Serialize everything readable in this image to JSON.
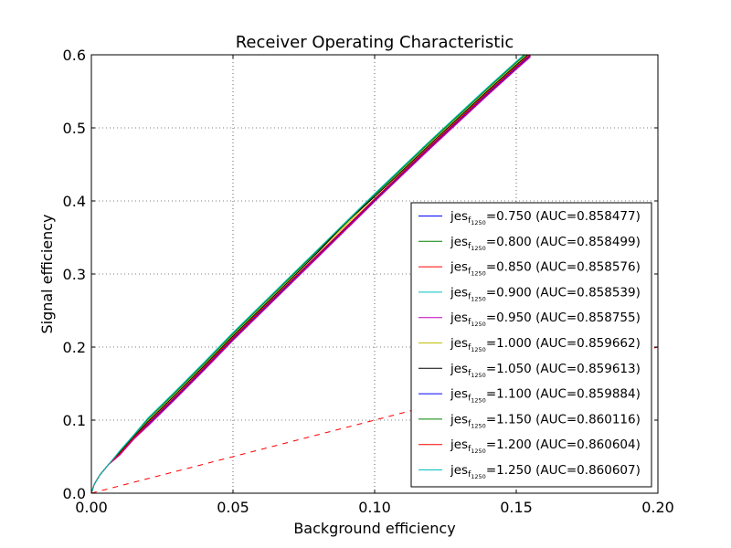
{
  "chart_data": {
    "type": "line",
    "title": "Receiver Operating Characteristic",
    "xlabel": "Background efficiency",
    "ylabel": "Signal efficiency",
    "xlim": [
      0,
      0.2
    ],
    "ylim": [
      0,
      0.6
    ],
    "xticks": [
      0,
      0.05,
      0.1,
      0.15,
      0.2
    ],
    "xtick_labels": [
      "0.00",
      "0.05",
      "0.10",
      "0.15",
      "0.20"
    ],
    "yticks": [
      0,
      0.1,
      0.2,
      0.3,
      0.4,
      0.5,
      0.6
    ],
    "ytick_labels": [
      "0.0",
      "0.1",
      "0.2",
      "0.3",
      "0.4",
      "0.5",
      "0.6"
    ],
    "grid": true,
    "legend_position": "lower-right",
    "reference_line": {
      "x": [
        0,
        0.2
      ],
      "y": [
        0,
        0.2
      ],
      "color": "#ff0000",
      "style": "dashed"
    },
    "x": [
      0,
      0.001,
      0.003,
      0.006,
      0.01,
      0.015,
      0.02,
      0.03,
      0.04,
      0.05,
      0.06,
      0.07,
      0.08,
      0.09,
      0.1,
      0.11,
      0.12,
      0.13,
      0.14,
      0.15,
      0.155
    ],
    "series": [
      {
        "label": {
          "base": "jes",
          "sub": "f",
          "subsub": "1250",
          "suffix": "=0.750 (AUC=0.858477)"
        },
        "color": "#0000ff",
        "values": [
          0,
          0.012,
          0.025,
          0.039,
          0.053,
          0.074,
          0.093,
          0.131,
          0.17,
          0.21,
          0.248,
          0.286,
          0.324,
          0.362,
          0.4,
          0.437,
          0.474,
          0.51,
          0.546,
          0.581,
          0.598
        ]
      },
      {
        "label": {
          "base": "jes",
          "sub": "f",
          "subsub": "1250",
          "suffix": "=0.800 (AUC=0.858499)"
        },
        "color": "#008000",
        "values": [
          0,
          0.012,
          0.025,
          0.039,
          0.056,
          0.079,
          0.101,
          0.139,
          0.178,
          0.218,
          0.256,
          0.294,
          0.332,
          0.37,
          0.408,
          0.445,
          0.482,
          0.518,
          0.554,
          0.589,
          0.606
        ]
      },
      {
        "label": {
          "base": "jes",
          "sub": "f",
          "subsub": "1250",
          "suffix": "=0.850 (AUC=0.858576)"
        },
        "color": "#ff0000",
        "values": [
          0,
          0.012,
          0.025,
          0.039,
          0.053,
          0.075,
          0.094,
          0.132,
          0.171,
          0.211,
          0.249,
          0.287,
          0.325,
          0.363,
          0.401,
          0.438,
          0.475,
          0.511,
          0.547,
          0.582,
          0.599
        ]
      },
      {
        "label": {
          "base": "jes",
          "sub": "f",
          "subsub": "1250",
          "suffix": "=0.900 (AUC=0.858539)"
        },
        "color": "#00bfbf",
        "values": [
          0,
          0.012,
          0.025,
          0.039,
          0.057,
          0.079,
          0.102,
          0.14,
          0.179,
          0.219,
          0.257,
          0.295,
          0.333,
          0.371,
          0.409,
          0.446,
          0.483,
          0.519,
          0.555,
          0.59,
          0.607
        ]
      },
      {
        "label": {
          "base": "jes",
          "sub": "f",
          "subsub": "1250",
          "suffix": "=0.950 (AUC=0.858755)"
        },
        "color": "#bf00bf",
        "values": [
          0,
          0.012,
          0.025,
          0.039,
          0.052,
          0.074,
          0.092,
          0.13,
          0.169,
          0.209,
          0.247,
          0.285,
          0.323,
          0.361,
          0.399,
          0.436,
          0.473,
          0.509,
          0.545,
          0.58,
          0.597
        ]
      },
      {
        "label": {
          "base": "jes",
          "sub": "f",
          "subsub": "1250",
          "suffix": "=1.000 (AUC=0.859662)"
        },
        "color": "#bfbf00",
        "values": [
          0,
          0.012,
          0.025,
          0.039,
          0.055,
          0.077,
          0.099,
          0.137,
          0.176,
          0.216,
          0.254,
          0.292,
          0.33,
          0.368,
          0.406,
          0.443,
          0.48,
          0.516,
          0.552,
          0.587,
          0.604
        ]
      },
      {
        "label": {
          "base": "jes",
          "sub": "f",
          "subsub": "1250",
          "suffix": "=1.050 (AUC=0.859613)"
        },
        "color": "#000000",
        "values": [
          0,
          0.012,
          0.025,
          0.039,
          0.055,
          0.077,
          0.098,
          0.136,
          0.175,
          0.215,
          0.253,
          0.291,
          0.33,
          0.371,
          0.406,
          0.442,
          0.479,
          0.515,
          0.551,
          0.586,
          0.603
        ]
      },
      {
        "label": {
          "base": "jes",
          "sub": "f",
          "subsub": "1250",
          "suffix": "=1.100 (AUC=0.859884)"
        },
        "color": "#0000ff",
        "values": [
          0,
          0.012,
          0.025,
          0.039,
          0.054,
          0.076,
          0.095,
          0.133,
          0.172,
          0.212,
          0.25,
          0.288,
          0.326,
          0.364,
          0.402,
          0.439,
          0.476,
          0.512,
          0.548,
          0.583,
          0.6
        ]
      },
      {
        "label": {
          "base": "jes",
          "sub": "f",
          "subsub": "1250",
          "suffix": "=1.150 (AUC=0.860116)"
        },
        "color": "#008000",
        "values": [
          0,
          0.012,
          0.025,
          0.039,
          0.057,
          0.079,
          0.102,
          0.14,
          0.179,
          0.219,
          0.257,
          0.295,
          0.333,
          0.371,
          0.409,
          0.446,
          0.483,
          0.519,
          0.555,
          0.59,
          0.607
        ]
      },
      {
        "label": {
          "base": "jes",
          "sub": "f",
          "subsub": "1250",
          "suffix": "=1.200 (AUC=0.860604)"
        },
        "color": "#ff0000",
        "values": [
          0,
          0.012,
          0.025,
          0.039,
          0.054,
          0.076,
          0.096,
          0.134,
          0.173,
          0.213,
          0.251,
          0.289,
          0.327,
          0.365,
          0.403,
          0.44,
          0.477,
          0.513,
          0.549,
          0.584,
          0.601
        ]
      },
      {
        "label": {
          "base": "jes",
          "sub": "f",
          "subsub": "1250",
          "suffix": "=1.250 (AUC=0.860607)"
        },
        "color": "#00bfbf",
        "values": [
          0,
          0.012,
          0.025,
          0.039,
          0.058,
          0.08,
          0.103,
          0.141,
          0.18,
          0.22,
          0.258,
          0.296,
          0.334,
          0.372,
          0.41,
          0.447,
          0.484,
          0.52,
          0.556,
          0.591,
          0.608
        ]
      }
    ]
  }
}
